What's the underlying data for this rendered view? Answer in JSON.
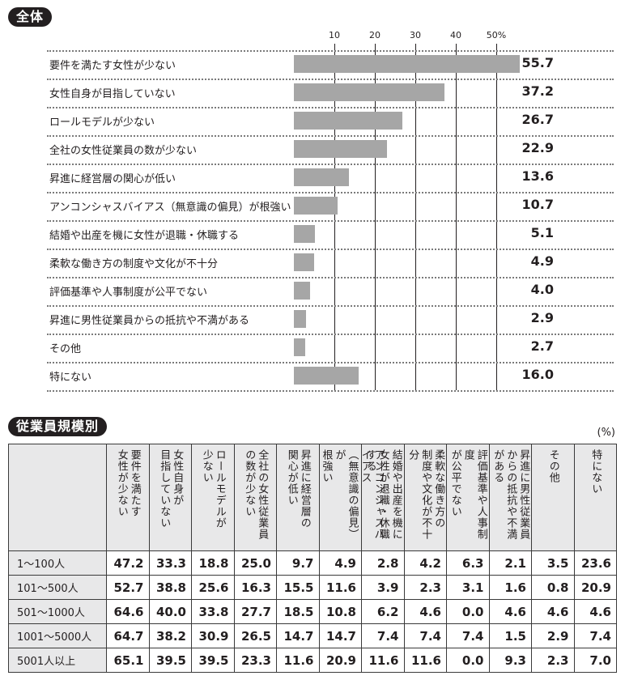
{
  "sections": {
    "overall_badge": "全体",
    "by_size_badge": "従業員規模別",
    "unit": "(%)"
  },
  "chart_data": [
    {
      "type": "bar",
      "orientation": "horizontal",
      "title": "全体",
      "categories": [
        "要件を満たす女性が少ない",
        "女性自身が目指していない",
        "ロールモデルが少ない",
        "全社の女性従業員の数が少ない",
        "昇進に経営層の関心が低い",
        "アンコンシャスバイアス（無意識の偏見）が根強い",
        "結婚や出産を機に女性が退職・休職する",
        "柔軟な働き方の制度や文化が不十分",
        "評価基準や人事制度が公平でない",
        "昇進に男性従業員からの抵抗や不満がある",
        "その他",
        "特にない"
      ],
      "values": [
        55.7,
        37.2,
        26.7,
        22.9,
        13.6,
        10.7,
        5.1,
        4.9,
        4.0,
        2.9,
        2.7,
        16.0
      ],
      "value_labels": [
        "55.7",
        "37.2",
        "26.7",
        "22.9",
        "13.6",
        "10.7",
        "5.1",
        "4.9",
        "4.0",
        "2.9",
        "2.7",
        "16.0"
      ],
      "xlim": [
        0,
        50
      ],
      "xticks": [
        "10",
        "20",
        "30",
        "40",
        "50%"
      ],
      "grid": true,
      "bar_color": "#a6a6a6"
    },
    {
      "type": "table",
      "title": "従業員規模別",
      "unit": "(%)",
      "columns": [
        "要件を満たす女性が少ない",
        "女性自身が目指していない",
        "ロールモデルが少ない",
        "全社の女性従業員の数が少ない",
        "昇進に経営層の関心が低い",
        "アンコンシャスバイアス（無意識の偏見）が根強い",
        "結婚や出産を機に女性が退職・休職する",
        "柔軟な働き方の制度や文化が不十分",
        "評価基準や人事制度が公平でない",
        "昇進に男性従業員からの抵抗や不満がある",
        "その他",
        "特にない"
      ],
      "rows": [
        {
          "label": "1〜100人",
          "values": [
            "47.2",
            "33.3",
            "18.8",
            "25.0",
            "9.7",
            "4.9",
            "2.8",
            "4.2",
            "6.3",
            "2.1",
            "3.5",
            "23.6"
          ]
        },
        {
          "label": "101〜500人",
          "values": [
            "52.7",
            "38.8",
            "25.6",
            "16.3",
            "15.5",
            "11.6",
            "3.9",
            "2.3",
            "3.1",
            "1.6",
            "0.8",
            "20.9"
          ]
        },
        {
          "label": "501〜1000人",
          "values": [
            "64.6",
            "40.0",
            "33.8",
            "27.7",
            "18.5",
            "10.8",
            "6.2",
            "4.6",
            "0.0",
            "4.6",
            "4.6",
            "4.6"
          ]
        },
        {
          "label": "1001〜5000人",
          "values": [
            "64.7",
            "38.2",
            "30.9",
            "26.5",
            "14.7",
            "14.7",
            "7.4",
            "7.4",
            "7.4",
            "1.5",
            "2.9",
            "7.4"
          ]
        },
        {
          "label": "5001人以上",
          "values": [
            "65.1",
            "39.5",
            "39.5",
            "23.3",
            "11.6",
            "20.9",
            "11.6",
            "11.6",
            "0.0",
            "9.3",
            "2.3",
            "7.0"
          ]
        }
      ]
    }
  ],
  "table_headers": [
    "要件を満たす\n女性が少ない",
    "女性自身が\n目指していない",
    "ロールモデルが\n少ない",
    "全社の女性従業員\nの数が少ない",
    "昇進に経営層の\n関心が低い",
    "アンコンシャスバイアス\n（無意識の偏見）が\n根強い",
    "結婚や出産を機に\n女性が退職・休職する",
    "柔軟な働き方の\n制度や文化が不十分",
    "評価基準や人事制度\nが公平でない",
    "昇進に男性従業員\nからの抵抗や不満\nがある",
    "その他",
    "特にない"
  ]
}
